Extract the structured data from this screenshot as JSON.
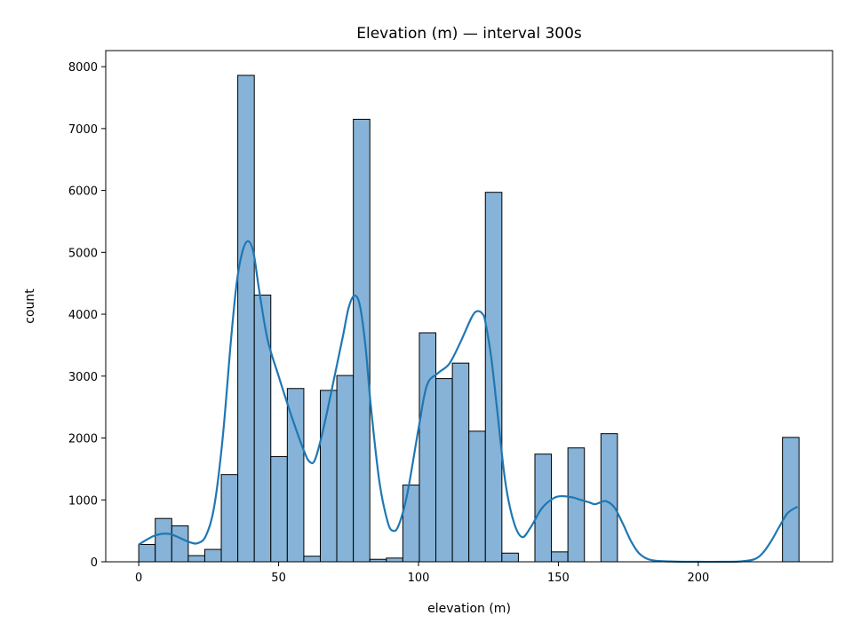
{
  "chart_data": {
    "type": "bar",
    "title": "Elevation (m) — interval 300s",
    "xlabel": "elevation (m)",
    "ylabel": "count",
    "xlim": [
      -11.8,
      248.0
    ],
    "ylim": [
      0,
      8260
    ],
    "x_ticks": [
      0,
      50,
      100,
      150,
      200
    ],
    "y_ticks": [
      0,
      1000,
      2000,
      3000,
      4000,
      5000,
      6000,
      7000,
      8000
    ],
    "grid": false,
    "bin_width": 5.9,
    "bins": [
      {
        "start": 0.0,
        "count": 280
      },
      {
        "start": 5.9,
        "count": 700
      },
      {
        "start": 11.8,
        "count": 580
      },
      {
        "start": 17.7,
        "count": 100
      },
      {
        "start": 23.6,
        "count": 200
      },
      {
        "start": 29.5,
        "count": 1410
      },
      {
        "start": 35.4,
        "count": 7860
      },
      {
        "start": 41.3,
        "count": 4310
      },
      {
        "start": 47.2,
        "count": 1700
      },
      {
        "start": 53.1,
        "count": 2800
      },
      {
        "start": 59.0,
        "count": 90
      },
      {
        "start": 64.9,
        "count": 2770
      },
      {
        "start": 70.8,
        "count": 3010
      },
      {
        "start": 76.7,
        "count": 7150
      },
      {
        "start": 82.6,
        "count": 40
      },
      {
        "start": 88.5,
        "count": 60
      },
      {
        "start": 94.4,
        "count": 1240
      },
      {
        "start": 100.3,
        "count": 3700
      },
      {
        "start": 106.2,
        "count": 2960
      },
      {
        "start": 112.1,
        "count": 3210
      },
      {
        "start": 118.0,
        "count": 2110
      },
      {
        "start": 123.9,
        "count": 5970
      },
      {
        "start": 129.8,
        "count": 140
      },
      {
        "start": 141.6,
        "count": 1740
      },
      {
        "start": 147.5,
        "count": 160
      },
      {
        "start": 153.4,
        "count": 1840
      },
      {
        "start": 165.2,
        "count": 2070
      },
      {
        "start": 230.1,
        "count": 2010
      }
    ],
    "kde": {
      "x": [
        0,
        5,
        8,
        11,
        14,
        18,
        21,
        24,
        27,
        30,
        33,
        35,
        37,
        39,
        41,
        43,
        46,
        50,
        55,
        59,
        61,
        63,
        66,
        70,
        73,
        75,
        77,
        79,
        81,
        83,
        86,
        89,
        91,
        93,
        96,
        100,
        103,
        107,
        111,
        115,
        119,
        121,
        123,
        124,
        126,
        128,
        131,
        134,
        137,
        140,
        144,
        148,
        151,
        155,
        158,
        161,
        163,
        165,
        167,
        170,
        173,
        176,
        179,
        183,
        190,
        200,
        210,
        215,
        220,
        223,
        226,
        229,
        232,
        235.5
      ],
      "y": [
        280,
        410,
        450,
        450,
        400,
        320,
        300,
        420,
        900,
        2000,
        3600,
        4500,
        5000,
        5180,
        5000,
        4400,
        3600,
        3000,
        2300,
        1800,
        1620,
        1650,
        2150,
        3000,
        3650,
        4100,
        4300,
        4150,
        3500,
        2500,
        1300,
        640,
        500,
        600,
        1100,
        2150,
        2850,
        3050,
        3200,
        3550,
        3950,
        4050,
        4000,
        3850,
        3300,
        2500,
        1300,
        650,
        400,
        550,
        860,
        1020,
        1060,
        1040,
        1000,
        960,
        930,
        960,
        980,
        880,
        620,
        330,
        130,
        30,
        5,
        0,
        0,
        5,
        40,
        140,
        330,
        570,
        790,
        890
      ]
    },
    "colors": {
      "bar_fill": "#86b3d7",
      "bar_edge": "#000000",
      "kde_line": "#1f77b4",
      "axes": "#000000",
      "background": "#ffffff"
    }
  }
}
